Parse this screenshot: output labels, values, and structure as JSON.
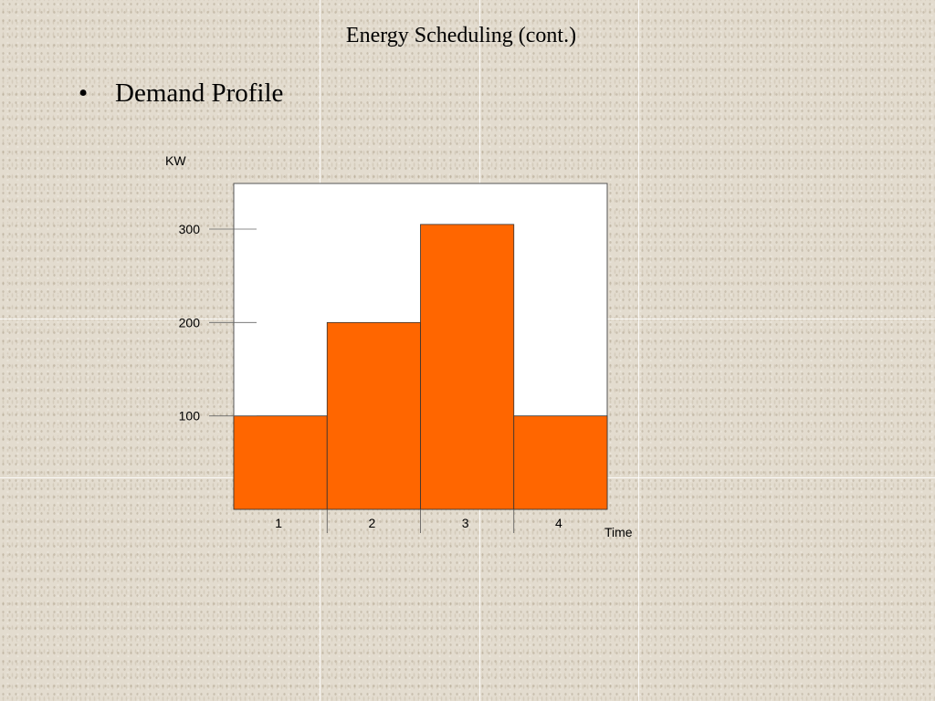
{
  "slide": {
    "title": "Energy Scheduling (cont.)",
    "bullet_symbol": "•",
    "bullet_text": "Demand Profile"
  },
  "chart_data": {
    "type": "bar",
    "categories": [
      "1",
      "2",
      "3",
      "4"
    ],
    "values": [
      100,
      200,
      305,
      100
    ],
    "title": "",
    "xlabel": "Time",
    "ylabel": "KW",
    "yticks": [
      100,
      200,
      300
    ],
    "ylim": [
      0,
      350
    ],
    "grid": false,
    "bar_color": "#ff6600",
    "plot_background": "#ffffff"
  }
}
